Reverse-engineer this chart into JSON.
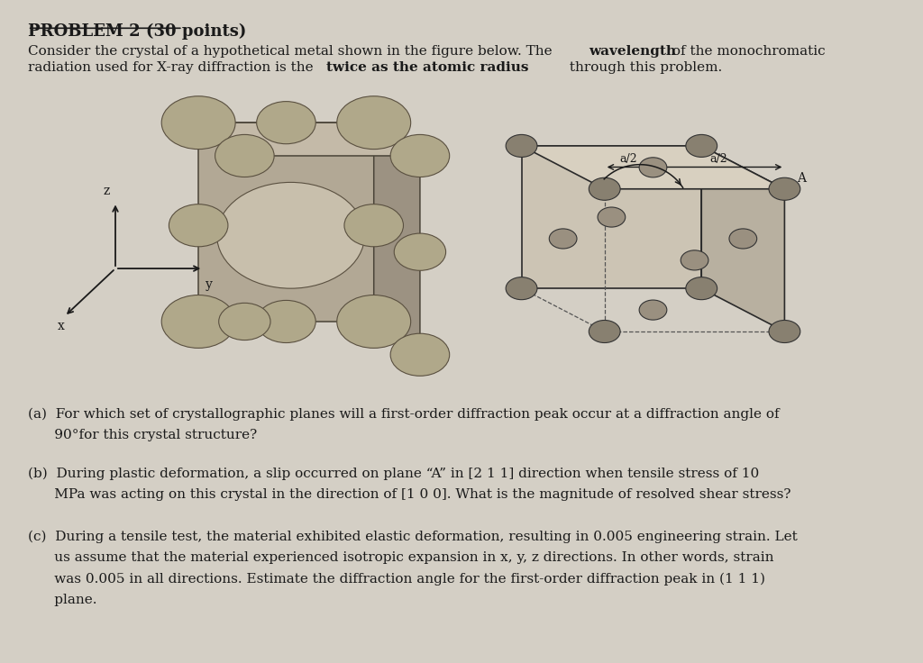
{
  "background_color": "#d4cfc5",
  "title_text": "PROBLEM 2 (30 points)",
  "font_size_title": 13,
  "font_size_body": 11,
  "text_color": "#1a1a1a",
  "q_a_1": "(a)  For which set of crystallographic planes will a first-order diffraction peak occur at a diffraction angle of",
  "q_a_2": "      90°for this crystal structure?",
  "q_b_1": "(b)  During plastic deformation, a slip occurred on plane “A” in [2 1 1] direction when tensile stress of 10",
  "q_b_2": "      MPa was acting on this crystal in the direction of [1 0 0]. What is the magnitude of resolved shear stress?",
  "q_c_1": "(c)  During a tensile test, the material exhibited elastic deformation, resulting in 0.005 engineering strain. Let",
  "q_c_2": "      us assume that the material experienced isotropic expansion in x, y, z directions. In other words, strain",
  "q_c_3": "      was 0.005 in all directions. Estimate the diffraction angle for the first-order diffraction peak in (1 1 1)",
  "q_c_4": "      plane."
}
